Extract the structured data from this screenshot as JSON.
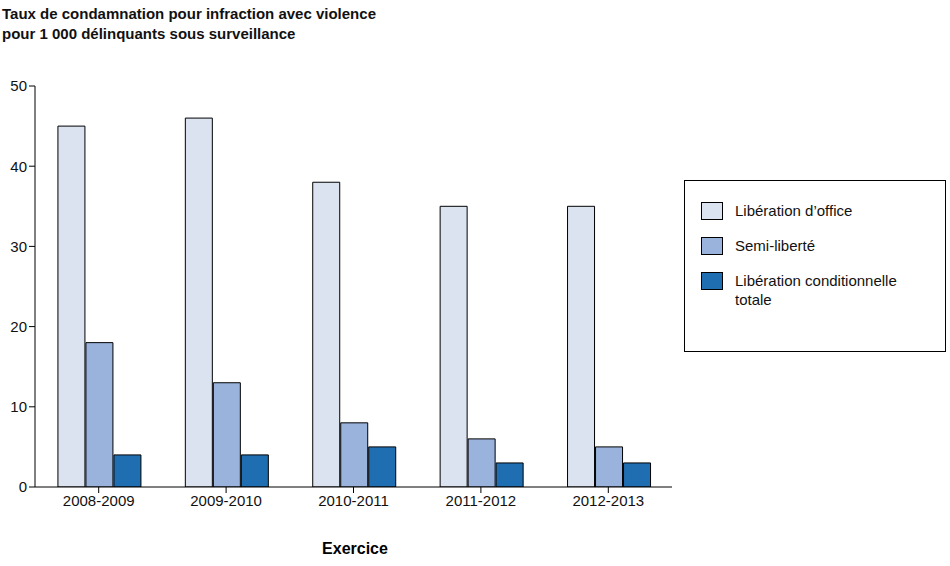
{
  "chart_data": {
    "type": "bar",
    "title": "Taux de condamnation pour infraction avec violence\npour 1 000 délinquants sous surveillance",
    "xlabel": "Exercice",
    "categories": [
      "2008-2009",
      "2009-2010",
      "2010-2011",
      "2011-2012",
      "2012-2013"
    ],
    "series": [
      {
        "name": "Libération d’office",
        "color": "#dbe3f1",
        "values": [
          45,
          46,
          38,
          35,
          35
        ]
      },
      {
        "name": "Semi-liberté",
        "color": "#99b3dc",
        "values": [
          18,
          13,
          8,
          6,
          5
        ]
      },
      {
        "name": "Libération conditionnelle totale",
        "color": "#1f6eb2",
        "values": [
          4,
          4,
          5,
          3,
          3
        ]
      }
    ],
    "ylim": [
      0,
      50
    ],
    "yticks": [
      0,
      10,
      20,
      30,
      40,
      50
    ],
    "grid": false,
    "legend": "right"
  }
}
